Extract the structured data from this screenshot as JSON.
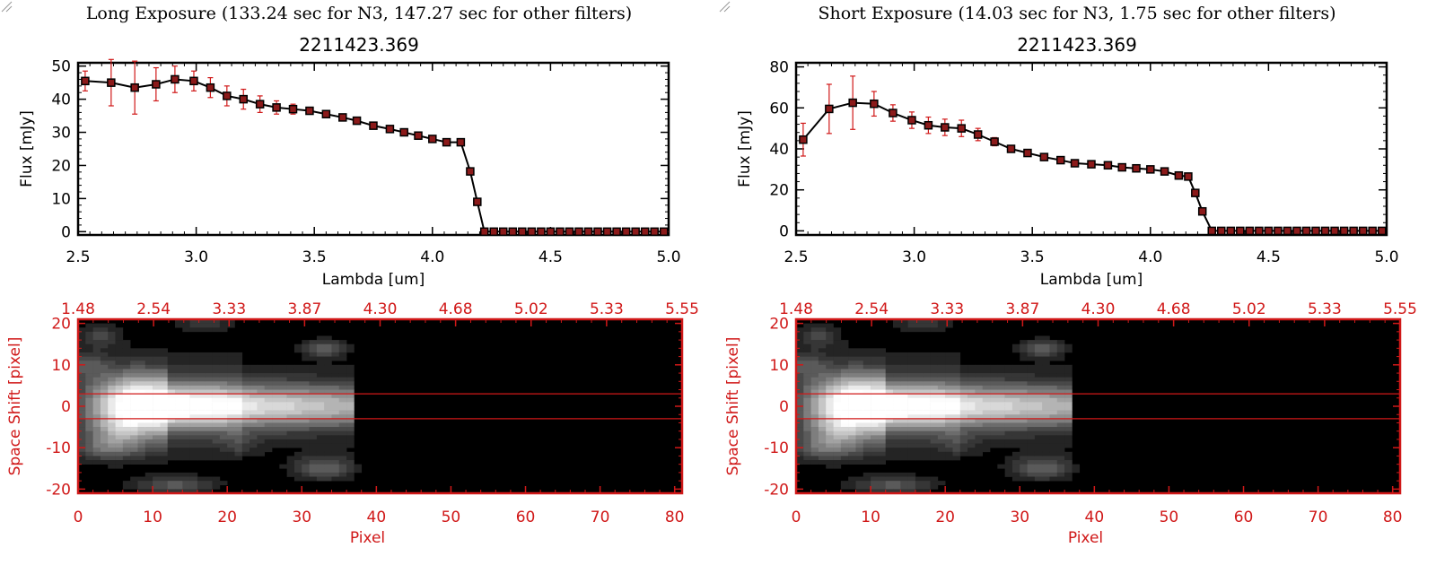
{
  "colors": {
    "accent_red": "#d01818",
    "line": "#000000",
    "marker": "#8b1a1a",
    "image_bg": "#000000"
  },
  "icons": {
    "resize_grip": "resize-grip-icon"
  },
  "panels": [
    {
      "exposure_title": "Long Exposure (133.24 sec for N3, 147.27 sec for other filters)"
    },
    {
      "exposure_title": "Short Exposure (14.03 sec for N3, 1.75 sec for other filters)"
    }
  ],
  "chart_data": [
    {
      "type": "line",
      "title": "2211423.369",
      "xlabel": "Lambda [um]",
      "ylabel": "Flux [mJy]",
      "xlim": [
        2.5,
        5.0
      ],
      "ylim": [
        -1,
        51
      ],
      "xticks": [
        "2.5",
        "3.0",
        "3.5",
        "4.0",
        "4.5",
        "5.0"
      ],
      "yticks": [
        "0",
        "10",
        "20",
        "30",
        "40",
        "50"
      ],
      "x": [
        2.53,
        2.64,
        2.74,
        2.83,
        2.91,
        2.99,
        3.06,
        3.13,
        3.2,
        3.27,
        3.34,
        3.41,
        3.48,
        3.55,
        3.62,
        3.68,
        3.75,
        3.82,
        3.88,
        3.94,
        4.0,
        4.06,
        4.12,
        4.16,
        4.19,
        4.22,
        4.26,
        4.3,
        4.34,
        4.38,
        4.42,
        4.46,
        4.5,
        4.54,
        4.58,
        4.62,
        4.66,
        4.7,
        4.74,
        4.78,
        4.82,
        4.86,
        4.9,
        4.94,
        4.98
      ],
      "values": [
        45.5,
        45,
        43.5,
        44.5,
        46,
        45.5,
        43.5,
        41,
        40,
        38.5,
        37.5,
        37,
        36.5,
        35.5,
        34.5,
        33.5,
        32,
        31,
        30,
        29,
        28,
        27,
        27,
        18.2,
        9,
        0,
        0,
        0,
        0,
        0,
        0,
        0,
        0,
        0,
        0,
        0,
        0,
        0,
        0,
        0,
        0,
        0,
        0,
        0,
        0
      ],
      "errors": [
        3,
        7,
        8,
        5,
        4,
        3,
        3,
        3,
        3,
        2.5,
        2,
        1.5,
        1,
        1,
        1,
        0.8,
        0.8,
        0.7,
        0.6,
        0.6,
        0.6,
        0.6,
        0.6,
        0.6,
        0.6,
        0,
        0,
        0,
        0,
        0,
        0,
        0,
        0,
        0,
        0,
        0,
        0,
        0,
        0,
        0,
        0,
        0,
        0,
        0,
        0
      ]
    },
    {
      "type": "line",
      "title": "2211423.369",
      "xlabel": "Lambda [um]",
      "ylabel": "Flux [mJy]",
      "xlim": [
        2.5,
        5.0
      ],
      "ylim": [
        -2,
        82
      ],
      "xticks": [
        "2.5",
        "3.0",
        "3.5",
        "4.0",
        "4.5",
        "5.0"
      ],
      "yticks": [
        "0",
        "20",
        "40",
        "60",
        "80"
      ],
      "x": [
        2.53,
        2.64,
        2.74,
        2.83,
        2.91,
        2.99,
        3.06,
        3.13,
        3.2,
        3.27,
        3.34,
        3.41,
        3.48,
        3.55,
        3.62,
        3.68,
        3.75,
        3.82,
        3.88,
        3.94,
        4.0,
        4.06,
        4.12,
        4.16,
        4.19,
        4.22,
        4.26,
        4.3,
        4.34,
        4.38,
        4.42,
        4.46,
        4.5,
        4.54,
        4.58,
        4.62,
        4.66,
        4.7,
        4.74,
        4.78,
        4.82,
        4.86,
        4.9,
        4.94,
        4.98
      ],
      "values": [
        44.5,
        59.5,
        62.5,
        62,
        57.5,
        54,
        51.5,
        50.5,
        50,
        47,
        43.5,
        40,
        38,
        36,
        34.5,
        33,
        32.5,
        32,
        31,
        30.5,
        30,
        29,
        27,
        26.5,
        18.5,
        9.5,
        0,
        0,
        0,
        0,
        0,
        0,
        0,
        0,
        0,
        0,
        0,
        0,
        0,
        0,
        0,
        0,
        0,
        0,
        0
      ],
      "errors": [
        8,
        12,
        13,
        6,
        4,
        4,
        4,
        4,
        4,
        3,
        2,
        1.5,
        1,
        1,
        1,
        1,
        1,
        1,
        1,
        1,
        1,
        1,
        1,
        1,
        1,
        0,
        0,
        0,
        0,
        0,
        0,
        0,
        0,
        0,
        0,
        0,
        0,
        0,
        0,
        0,
        0,
        0,
        0,
        0,
        0
      ]
    },
    {
      "type": "heatmap",
      "xlabel": "Pixel",
      "ylabel": "Space Shift [pixel]",
      "xlim": [
        0,
        81
      ],
      "ylim": [
        -21,
        21
      ],
      "xticks": [
        "0",
        "10",
        "20",
        "30",
        "40",
        "50",
        "60",
        "70",
        "80"
      ],
      "yticks": [
        "-20",
        "-10",
        "0",
        "10",
        "20"
      ],
      "top_axis_ticks": [
        "1.48",
        "2.54",
        "3.33",
        "3.87",
        "4.30",
        "4.68",
        "5.02",
        "5.33",
        "5.55"
      ],
      "band_lines_y": [
        3,
        -3
      ],
      "emission_extent_pixels": [
        0,
        37
      ]
    },
    {
      "type": "heatmap",
      "xlabel": "Pixel",
      "ylabel": "Space Shift [pixel]",
      "xlim": [
        0,
        81
      ],
      "ylim": [
        -21,
        21
      ],
      "xticks": [
        "0",
        "10",
        "20",
        "30",
        "40",
        "50",
        "60",
        "70",
        "80"
      ],
      "yticks": [
        "-20",
        "-10",
        "0",
        "10",
        "20"
      ],
      "top_axis_ticks": [
        "1.48",
        "2.54",
        "3.33",
        "3.87",
        "4.30",
        "4.68",
        "5.02",
        "5.33",
        "5.55"
      ],
      "band_lines_y": [
        3,
        -3
      ],
      "emission_extent_pixels": [
        0,
        37
      ]
    }
  ]
}
